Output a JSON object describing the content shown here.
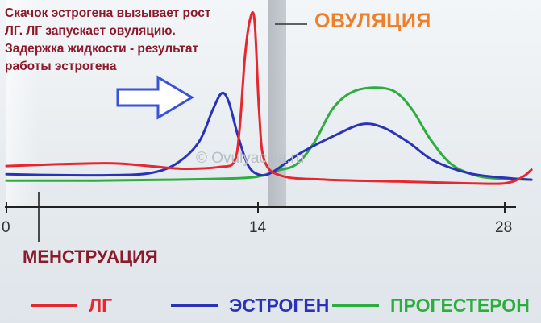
{
  "annotation": {
    "lines": [
      "Скачок эстрогена вызывает рост",
      "ЛГ. ЛГ запускает овуляцию.",
      "Задержка жидкости - результат",
      "работы эстрогена"
    ]
  },
  "ovulation_label": "ОВУЛЯЦИЯ",
  "menstruation_label": "МЕНСТРУАЦИЯ",
  "watermark": "© Ovulyaciya.ru",
  "colors": {
    "lh": "#e8262e",
    "estrogen": "#2a33b8",
    "progesterone": "#2cae3f",
    "arrow": "#3a52d6",
    "title_dark_red": "#8b1a2a",
    "ovulation": "#f07f2a"
  },
  "chart_data": {
    "type": "line",
    "x_ticks": [
      "0",
      "14",
      "28"
    ],
    "xlim": [
      0,
      29.5
    ],
    "series": [
      {
        "name": "ЛГ",
        "color": "#e8262e",
        "points": [
          [
            0,
            15.0
          ],
          [
            3,
            16.0
          ],
          [
            6,
            16.5
          ],
          [
            8,
            15.0
          ],
          [
            10,
            13.5
          ],
          [
            12,
            14.5
          ],
          [
            12.8,
            17.5
          ],
          [
            13.1,
            35
          ],
          [
            13.4,
            75
          ],
          [
            13.7,
            96
          ],
          [
            13.95,
            94
          ],
          [
            14.2,
            45
          ],
          [
            14.5,
            18
          ],
          [
            15.5,
            9.5
          ],
          [
            18,
            7.5
          ],
          [
            22,
            6.5
          ],
          [
            26,
            5.5
          ],
          [
            28,
            5.5
          ],
          [
            29,
            9
          ],
          [
            29.5,
            13
          ]
        ]
      },
      {
        "name": "ЭСТРОГЕН",
        "color": "#2a33b8",
        "points": [
          [
            0,
            10.5
          ],
          [
            3,
            10.0
          ],
          [
            6,
            10.0
          ],
          [
            8,
            11.0
          ],
          [
            9.5,
            16.0
          ],
          [
            10.8,
            28
          ],
          [
            11.6,
            46
          ],
          [
            12.1,
            55
          ],
          [
            12.5,
            50
          ],
          [
            13.0,
            32
          ],
          [
            13.6,
            15
          ],
          [
            14.3,
            10
          ],
          [
            15.0,
            12
          ],
          [
            16.5,
            22
          ],
          [
            18.5,
            32
          ],
          [
            20,
            38
          ],
          [
            21.2,
            36
          ],
          [
            22.6,
            28
          ],
          [
            24,
            18
          ],
          [
            26,
            11
          ],
          [
            28,
            8.5
          ],
          [
            29.5,
            7.5
          ]
        ]
      },
      {
        "name": "ПРОГЕСТЕРОН",
        "color": "#2cae3f",
        "points": [
          [
            0,
            7.0
          ],
          [
            5,
            7.0
          ],
          [
            9,
            7.5
          ],
          [
            12,
            8.0
          ],
          [
            14,
            9.0
          ],
          [
            15.2,
            12.5
          ],
          [
            16.3,
            16
          ],
          [
            17.3,
            28
          ],
          [
            18.3,
            46
          ],
          [
            19.3,
            55
          ],
          [
            20.5,
            58
          ],
          [
            21.8,
            56
          ],
          [
            22.8,
            46
          ],
          [
            23.8,
            30
          ],
          [
            25,
            16
          ],
          [
            26.5,
            9.5
          ],
          [
            28,
            8.0
          ],
          [
            29.5,
            7.5
          ]
        ]
      }
    ],
    "legend": [
      "ЛГ",
      "ЭСТРОГЕН",
      "ПРОГЕСТЕРОН"
    ]
  }
}
